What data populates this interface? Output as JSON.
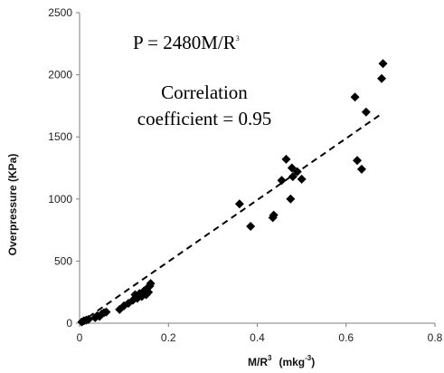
{
  "chart_data": {
    "type": "scatter",
    "xlabel_main": "M/R",
    "xlabel_sup": "3",
    "xlabel_unit_pre": "(mkg",
    "xlabel_unit_sup": "-3",
    "xlabel_unit_post": ")",
    "ylabel": "Overpressure (KPa)",
    "xlim": [
      0,
      0.8
    ],
    "ylim": [
      0,
      2500
    ],
    "x_ticks": [
      "0",
      "0.2",
      "0.4",
      "0.6",
      "0.8"
    ],
    "y_ticks": [
      "0",
      "500",
      "1000",
      "1500",
      "2000",
      "2500"
    ],
    "grid": false,
    "legend": "none",
    "annotations": {
      "equation_main": "P = 2480M/R",
      "equation_sup": "3",
      "correlation_line1": "Correlation",
      "correlation_line2": "coefficient = 0.95"
    },
    "trendline": {
      "style": "dashed",
      "slope": 2480,
      "intercept": 0,
      "x_range": [
        0,
        0.68
      ]
    },
    "marker": {
      "shape": "diamond",
      "color": "#000000"
    },
    "points": [
      {
        "x": 0.005,
        "y": 10
      },
      {
        "x": 0.01,
        "y": 20
      },
      {
        "x": 0.015,
        "y": 25
      },
      {
        "x": 0.02,
        "y": 30
      },
      {
        "x": 0.035,
        "y": 45
      },
      {
        "x": 0.04,
        "y": 60
      },
      {
        "x": 0.045,
        "y": 55
      },
      {
        "x": 0.05,
        "y": 75
      },
      {
        "x": 0.055,
        "y": 85
      },
      {
        "x": 0.06,
        "y": 90
      },
      {
        "x": 0.09,
        "y": 110
      },
      {
        "x": 0.1,
        "y": 140
      },
      {
        "x": 0.11,
        "y": 160
      },
      {
        "x": 0.12,
        "y": 185
      },
      {
        "x": 0.125,
        "y": 230
      },
      {
        "x": 0.13,
        "y": 200
      },
      {
        "x": 0.135,
        "y": 240
      },
      {
        "x": 0.14,
        "y": 215
      },
      {
        "x": 0.145,
        "y": 260
      },
      {
        "x": 0.15,
        "y": 230
      },
      {
        "x": 0.152,
        "y": 280
      },
      {
        "x": 0.155,
        "y": 250
      },
      {
        "x": 0.158,
        "y": 300
      },
      {
        "x": 0.16,
        "y": 320
      },
      {
        "x": 0.36,
        "y": 960
      },
      {
        "x": 0.385,
        "y": 780
      },
      {
        "x": 0.435,
        "y": 850
      },
      {
        "x": 0.437,
        "y": 870
      },
      {
        "x": 0.455,
        "y": 1150
      },
      {
        "x": 0.465,
        "y": 1320
      },
      {
        "x": 0.475,
        "y": 1000
      },
      {
        "x": 0.478,
        "y": 1250
      },
      {
        "x": 0.48,
        "y": 1180
      },
      {
        "x": 0.49,
        "y": 1220
      },
      {
        "x": 0.5,
        "y": 1160
      },
      {
        "x": 0.62,
        "y": 1820
      },
      {
        "x": 0.625,
        "y": 1310
      },
      {
        "x": 0.635,
        "y": 1240
      },
      {
        "x": 0.645,
        "y": 1700
      },
      {
        "x": 0.68,
        "y": 1970
      },
      {
        "x": 0.683,
        "y": 2090
      }
    ]
  }
}
